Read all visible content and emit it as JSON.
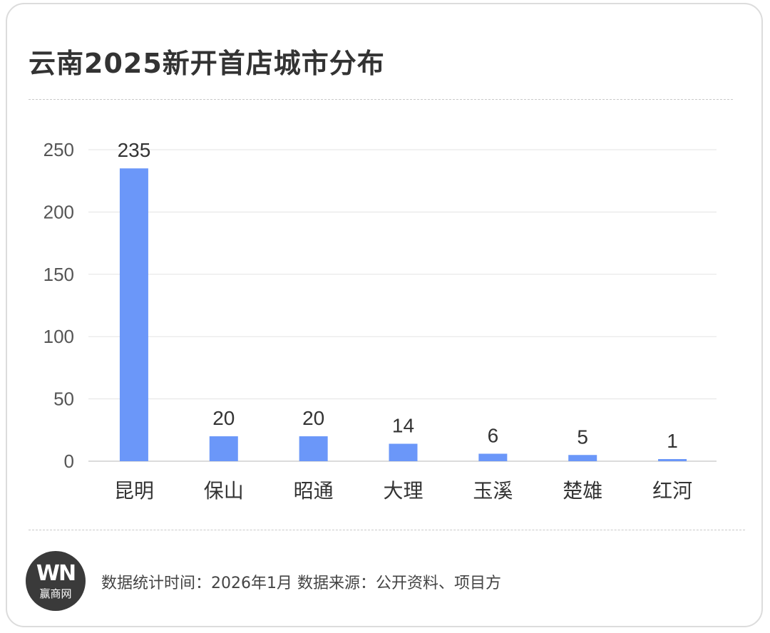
{
  "title": "云南2025新开首店城市分布",
  "footer": {
    "note": "数据统计时间：2026年1月 数据来源：公开资料、项目方",
    "logo_mark": "WN",
    "logo_text": "赢商网"
  },
  "colors": {
    "bar": "#6b97f9",
    "grid": "#e3e3e3",
    "axis": "#cfcfcf"
  },
  "chart_data": {
    "type": "bar",
    "title": "云南2025新开首店城市分布",
    "categories": [
      "昆明",
      "保山",
      "昭通",
      "大理",
      "玉溪",
      "楚雄",
      "红河"
    ],
    "values": [
      235,
      20,
      20,
      14,
      6,
      5,
      1
    ],
    "yticks": [
      0,
      50,
      100,
      150,
      200,
      250
    ],
    "ylim": [
      0,
      250
    ],
    "grid": true,
    "legend": "none",
    "xlabel": "",
    "ylabel": ""
  }
}
